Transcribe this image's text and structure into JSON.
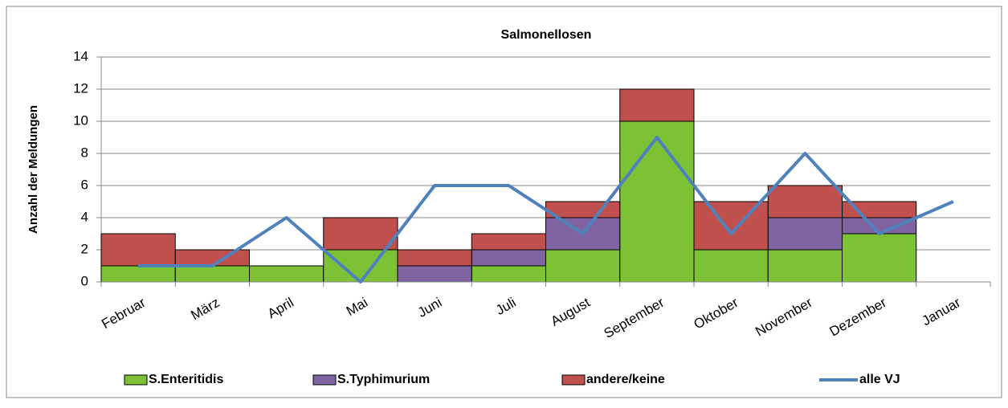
{
  "chart_data": {
    "type": "bar",
    "stacked": true,
    "title": "Salmonellosen",
    "y_label": "Anzahl der Meldungen",
    "categories": [
      "Februar",
      "März",
      "April",
      "Mai",
      "Juni",
      "Juli",
      "August",
      "September",
      "Oktober",
      "November",
      "Dezember",
      "Januar"
    ],
    "series": [
      {
        "name": "S.Enteritidis",
        "type": "bar",
        "color": "#7dc234",
        "values": [
          1,
          1,
          1,
          2,
          0,
          1,
          2,
          10,
          2,
          2,
          3,
          0
        ]
      },
      {
        "name": "S.Typhimurium",
        "type": "bar",
        "color": "#8064a2",
        "values": [
          0,
          0,
          0,
          0,
          1,
          1,
          2,
          0,
          0,
          2,
          1,
          0
        ]
      },
      {
        "name": "andere/keine",
        "type": "bar",
        "color": "#c0504d",
        "values": [
          2,
          1,
          0,
          2,
          1,
          1,
          1,
          2,
          3,
          2,
          1,
          0
        ]
      },
      {
        "name": "alle VJ",
        "type": "line",
        "color": "#4f81bd",
        "values": [
          1,
          1,
          4,
          0,
          6,
          6,
          3,
          9,
          3,
          8,
          3,
          5
        ]
      }
    ],
    "ylim": [
      0,
      14
    ],
    "yticks": [
      0,
      2,
      4,
      6,
      8,
      10,
      12,
      14
    ],
    "grid": true,
    "legend": "bottom"
  }
}
